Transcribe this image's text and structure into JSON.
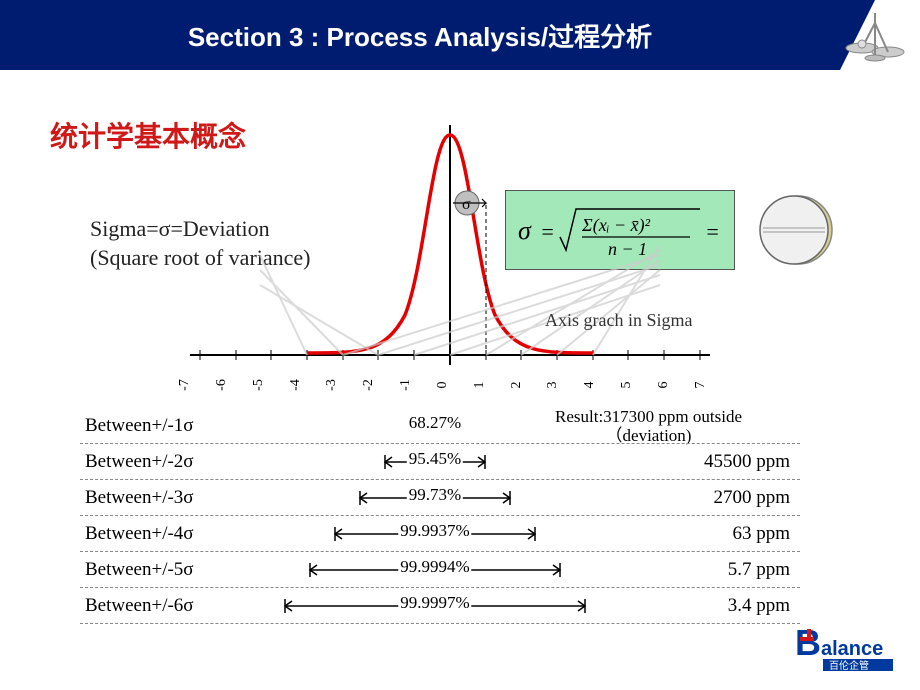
{
  "header": {
    "title": "Section 3 : Process Analysis/过程分析"
  },
  "subtitle": "统计学基本概念",
  "sigma_def": {
    "line1": "Sigma=σ=Deviation",
    "line2": "(Square root of variance)"
  },
  "formula": {
    "display": "σ = √( Σ(xᵢ − x̄)² / (n − 1) ) =",
    "bg": "#a3e8b8"
  },
  "axis_caption": "Axis grach in Sigma",
  "sigma_marker": "σ",
  "curve": {
    "color": "#e40000",
    "stroke_width": 3,
    "axis_color": "#000000",
    "type": "normal-distribution"
  },
  "x_ticks": [
    "-7",
    "-6",
    "-5",
    "-4",
    "-3",
    "-2",
    "-1",
    "0",
    "1",
    "2",
    "3",
    "4",
    "5",
    "6",
    "7"
  ],
  "result_header": {
    "line1": "Result:317300 ppm outside",
    "line2": "（deviation)"
  },
  "rows": [
    {
      "label": "Between+/-1σ",
      "pct": "68.27%",
      "ppm": "",
      "span": 1
    },
    {
      "label": "Between+/-2σ",
      "pct": "95.45%",
      "ppm": "45500 ppm",
      "span": 2
    },
    {
      "label": "Between+/-3σ",
      "pct": "99.73%",
      "ppm": "2700 ppm",
      "span": 3
    },
    {
      "label": "Between+/-4σ",
      "pct": "99.9937%",
      "ppm": "63 ppm",
      "span": 4
    },
    {
      "label": "Between+/-5σ",
      "pct": "99.9994%",
      "ppm": "5.7 ppm",
      "span": 5
    },
    {
      "label": "Between+/-6σ",
      "pct": "99.9997%",
      "ppm": "3.4 ppm",
      "span": 6
    }
  ],
  "colors": {
    "header_bg": "#001c71",
    "header_text": "#ffffff",
    "subtitle": "#d01818",
    "logo_blue": "#003a9e"
  },
  "logo": {
    "brand_b": "B",
    "brand_rest": "alance",
    "sub": "百伦企管"
  }
}
